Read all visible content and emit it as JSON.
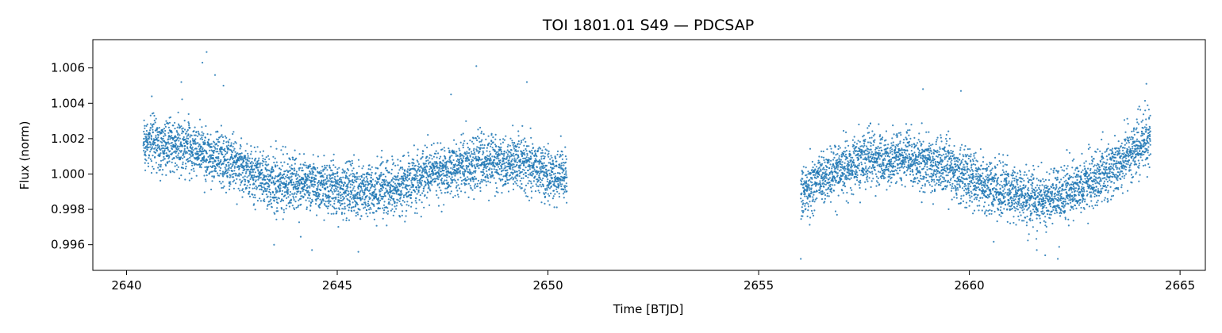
{
  "chart_data": {
    "type": "scatter",
    "title": "TOI 1801.01 S49 — PDCSAP",
    "xlabel": "Time [BTJD]",
    "ylabel": "Flux (norm)",
    "xlim": [
      2639.2,
      2665.6
    ],
    "ylim": [
      0.99455,
      1.0076
    ],
    "xticks": [
      2640,
      2645,
      2650,
      2655,
      2660,
      2665
    ],
    "yticks": [
      0.996,
      0.998,
      1.0,
      1.002,
      1.004,
      1.006
    ],
    "xtick_labels": [
      "2640",
      "2645",
      "2650",
      "2655",
      "2660",
      "2665"
    ],
    "ytick_labels": [
      "0.996",
      "0.998",
      "1.000",
      "1.002",
      "1.004",
      "1.006"
    ],
    "grid": false,
    "marker_color": "#1f77b4",
    "segments": [
      {
        "x_start": 2640.4,
        "x_end": 2650.45,
        "count": 4200
      },
      {
        "x_start": 2656.0,
        "x_end": 2664.3,
        "count": 3500
      }
    ],
    "trend": [
      [
        2640.4,
        1.0018
      ],
      [
        2641.5,
        1.0015
      ],
      [
        2642.5,
        1.0006
      ],
      [
        2643.5,
        0.9995
      ],
      [
        2644.5,
        0.9993
      ],
      [
        2645.5,
        0.999
      ],
      [
        2646.5,
        0.9993
      ],
      [
        2647.5,
        1.0002
      ],
      [
        2648.5,
        1.0007
      ],
      [
        2649.5,
        1.0005
      ],
      [
        2650.45,
        0.9997
      ],
      [
        2656.0,
        0.9988
      ],
      [
        2656.5,
        0.9998
      ],
      [
        2657.5,
        1.0008
      ],
      [
        2658.5,
        1.0009
      ],
      [
        2659.5,
        1.0003
      ],
      [
        2660.5,
        0.9992
      ],
      [
        2661.5,
        0.9986
      ],
      [
        2662.5,
        0.999
      ],
      [
        2663.5,
        1.0005
      ],
      [
        2664.3,
        1.0022
      ]
    ],
    "scatter_sigma": 0.00075,
    "outliers": [
      [
        2641.3,
        1.0052
      ],
      [
        2641.8,
        1.0063
      ],
      [
        2641.9,
        1.0069
      ],
      [
        2642.1,
        1.0056
      ],
      [
        2642.3,
        1.005
      ],
      [
        2648.3,
        1.0061
      ],
      [
        2649.5,
        1.0052
      ],
      [
        2647.7,
        1.0045
      ],
      [
        2656.0,
        0.9952
      ],
      [
        2658.9,
        1.0048
      ],
      [
        2659.8,
        1.0047
      ],
      [
        2661.8,
        0.9954
      ],
      [
        2662.1,
        0.9952
      ],
      [
        2661.6,
        0.9957
      ],
      [
        2664.2,
        1.0051
      ],
      [
        2645.5,
        0.9956
      ],
      [
        2644.4,
        0.9957
      ],
      [
        2643.5,
        0.996
      ]
    ]
  }
}
